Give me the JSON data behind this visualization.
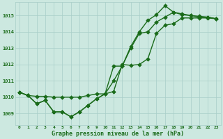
{
  "title": "Graphe pression niveau de la mer (hPa)",
  "bg_color": "#cce8e0",
  "grid_color": "#a8cec8",
  "line_color": "#1a6b1a",
  "xlim": [
    -0.5,
    23.5
  ],
  "ylim": [
    1008.3,
    1015.8
  ],
  "xticks": [
    0,
    1,
    2,
    3,
    4,
    5,
    6,
    7,
    8,
    9,
    10,
    11,
    12,
    13,
    14,
    15,
    16,
    17,
    18,
    19,
    20,
    21,
    22,
    23
  ],
  "yticks": [
    1009,
    1010,
    1011,
    1012,
    1013,
    1014,
    1015
  ],
  "s1": [
    1010.3,
    1010.1,
    1009.6,
    1009.8,
    1009.1,
    1009.1,
    1008.8,
    1009.1,
    1009.5,
    1009.9,
    1010.2,
    1011.9,
    1011.9,
    1013.1,
    1014.0,
    1014.7,
    1015.05,
    1015.6,
    1015.2,
    1015.05,
    1015.0,
    1014.95,
    1014.9,
    1014.8
  ],
  "s2": [
    1010.3,
    1010.1,
    1009.6,
    1009.8,
    1009.1,
    1009.1,
    1008.8,
    1009.1,
    1009.5,
    1009.9,
    1010.2,
    1011.0,
    1011.9,
    1013.0,
    1013.9,
    1014.0,
    1014.6,
    1014.9,
    1015.2,
    1015.1,
    1015.0,
    1014.9,
    1014.9,
    1014.8
  ],
  "s3": [
    1010.3,
    1010.1,
    1010.05,
    1010.05,
    1010.0,
    1010.0,
    1010.0,
    1010.0,
    1010.1,
    1010.2,
    1010.2,
    1010.35,
    1012.0,
    1011.95,
    1012.0,
    1012.35,
    1013.9,
    1014.4,
    1014.5,
    1014.85,
    1014.85,
    1014.85,
    1014.85,
    1014.8
  ],
  "marker_size": 2.8,
  "linewidth": 1.0
}
